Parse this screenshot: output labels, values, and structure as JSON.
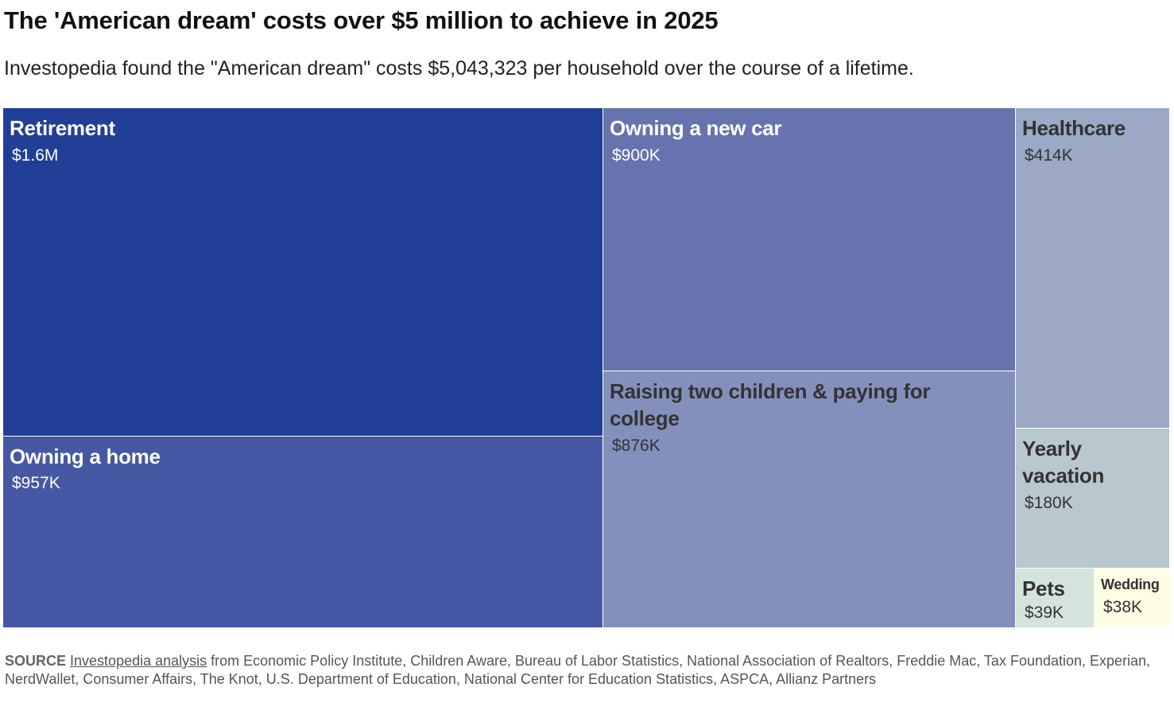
{
  "header": {
    "title": "The 'American dream' costs over $5 million to achieve in 2025",
    "subtitle": "Investopedia found the \"American dream\" costs $5,043,323 per household over the course of a lifetime."
  },
  "chart_data": {
    "type": "treemap",
    "title": "The 'American dream' costs over $5 million to achieve in 2025",
    "subtitle": "Investopedia found the \"American dream\" costs $5,043,323 per household over the course of a lifetime.",
    "total": 5043323,
    "items": [
      {
        "name": "Retirement",
        "label": "Retirement",
        "value_label": "$1.6M",
        "value": 1600000,
        "color": "#213f96",
        "text_color": "#ffffff"
      },
      {
        "name": "Owning a home",
        "label": "Owning a home",
        "value_label": "$957K",
        "value": 957000,
        "color": "#4658a3",
        "text_color": "#ffffff"
      },
      {
        "name": "Owning a new car",
        "label": "Owning a new car",
        "value_label": "$900K",
        "value": 900000,
        "color": "#6773ae",
        "text_color": "#ffffff"
      },
      {
        "name": "Raising two children & paying for college",
        "label": "Raising two children & paying for college",
        "value_label": "$876K",
        "value": 876000,
        "color": "#8490bc",
        "text_color": "#333333"
      },
      {
        "name": "Healthcare",
        "label": "Healthcare",
        "value_label": "$414K",
        "value": 414000,
        "color": "#9ba9c6",
        "text_color": "#333333"
      },
      {
        "name": "Yearly vacation",
        "label": "Yearly vacation",
        "value_label": "$180K",
        "value": 180000,
        "color": "#b9c7cf",
        "text_color": "#333333"
      },
      {
        "name": "Pets",
        "label": "Pets",
        "value_label": "$39K",
        "value": 39000,
        "color": "#d4e3dc",
        "text_color": "#333333"
      },
      {
        "name": "Wedding",
        "label": "Wedding",
        "value_label": "$38K",
        "value": 38000,
        "color": "#fdfde4",
        "text_color": "#333333"
      }
    ]
  },
  "footer": {
    "source_label": "SOURCE",
    "source_link": "Investopedia analysis",
    "source_text": " from Economic Policy Institute, Children Aware, Bureau of Labor Statistics, National Association of Realtors, Freddie Mac, Tax Foundation, Experian, NerdWallet, Consumer Affairs, The Knot, U.S. Department of Education, National Center for Education Statistics, ASPCA, Allianz Partners"
  }
}
